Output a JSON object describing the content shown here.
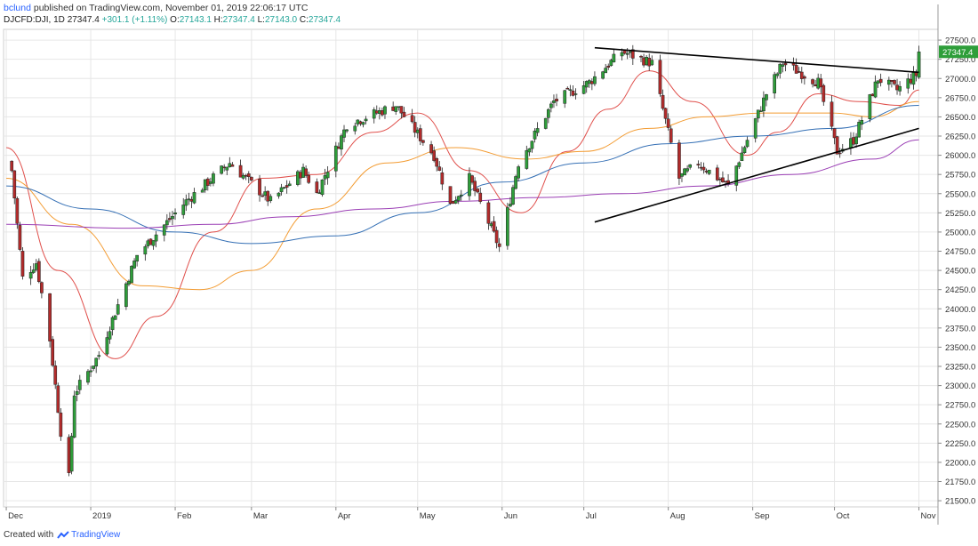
{
  "header": {
    "author": "bclund",
    "published_text": "published on TradingView.com, November 01, 2019 22:06:17 UTC"
  },
  "symbol_row": {
    "symbol": "DJCFD:DJI, 1D",
    "last": "27347.4",
    "change": "+301.1 (+1.11%)",
    "open_label": "O:",
    "open": "27143.1",
    "high_label": "H:",
    "high": "27347.4",
    "low_label": "L:",
    "low": "27143.0",
    "close_label": "C:",
    "close": "27347.4"
  },
  "footer": {
    "created_with": "Created with",
    "brand": "TradingView"
  },
  "colors": {
    "up": "#2e9e3a",
    "down": "#b22b2b",
    "price_tag": "#2e9e3a",
    "ma_red": "#e0504c",
    "ma_orange": "#f39c33",
    "ma_blue": "#3570b5",
    "ma_purple": "#9b3fb5",
    "trendline": "#000000",
    "grid": "#e6e6e6"
  },
  "chart_data": {
    "type": "candlestick",
    "title": "",
    "y_axis": {
      "ticks": [
        27500,
        27250,
        27000,
        26750,
        26500,
        26250,
        26000,
        25750,
        25500,
        25250,
        25000,
        24750,
        24500,
        24250,
        24000,
        23750,
        23500,
        23250,
        23000,
        22750,
        22500,
        22250,
        22000,
        21750,
        21500
      ],
      "tick_labels": [
        "27500.0",
        "27250.0",
        "27000.0",
        "26750.0",
        "26500.0",
        "26250.0",
        "26000.0",
        "25750.0",
        "25500.0",
        "25250.0",
        "25000.0",
        "24750.0",
        "24500.0",
        "24250.0",
        "24000.0",
        "23750.0",
        "23500.0",
        "23250.0",
        "23000.0",
        "22750.0",
        "22500.0",
        "22250.0",
        "22000.0",
        "21750.0",
        "21500.0"
      ],
      "range": [
        21420,
        27640
      ],
      "position": "right"
    },
    "x_axis": {
      "labels": [
        {
          "text": "Dec",
          "date": "2018-12-01"
        },
        {
          "text": "2019",
          "date": "2019-01-01"
        },
        {
          "text": "Feb",
          "date": "2019-02-01"
        },
        {
          "text": "Mar",
          "date": "2019-03-01"
        },
        {
          "text": "Apr",
          "date": "2019-04-01"
        },
        {
          "text": "May",
          "date": "2019-05-01"
        },
        {
          "text": "Jun",
          "date": "2019-06-01"
        },
        {
          "text": "Jul",
          "date": "2019-07-01"
        },
        {
          "text": "Aug",
          "date": "2019-08-01"
        },
        {
          "text": "Sep",
          "date": "2019-09-01"
        },
        {
          "text": "Oct",
          "date": "2019-10-01"
        },
        {
          "text": "Nov",
          "date": "2019-11-01"
        }
      ],
      "range": [
        "2018-11-30",
        "2019-11-08"
      ]
    },
    "last_price_label": "27347.4",
    "last_price": 27347.4,
    "close_anchors": [
      {
        "date": "2018-12-03",
        "close": 25800
      },
      {
        "date": "2018-12-07",
        "close": 24400
      },
      {
        "date": "2018-12-12",
        "close": 24600
      },
      {
        "date": "2018-12-17",
        "close": 23600
      },
      {
        "date": "2018-12-21",
        "close": 22400
      },
      {
        "date": "2018-12-24",
        "close": 21800
      },
      {
        "date": "2018-12-26",
        "close": 22900
      },
      {
        "date": "2019-01-04",
        "close": 23400
      },
      {
        "date": "2019-01-18",
        "close": 24700
      },
      {
        "date": "2019-02-05",
        "close": 25400
      },
      {
        "date": "2019-02-21",
        "close": 25900
      },
      {
        "date": "2019-03-08",
        "close": 25400
      },
      {
        "date": "2019-03-20",
        "close": 25800
      },
      {
        "date": "2019-03-25",
        "close": 25500
      },
      {
        "date": "2019-04-05",
        "close": 26400
      },
      {
        "date": "2019-04-23",
        "close": 26650
      },
      {
        "date": "2019-05-07",
        "close": 26000
      },
      {
        "date": "2019-05-13",
        "close": 25350
      },
      {
        "date": "2019-05-20",
        "close": 25700
      },
      {
        "date": "2019-05-31",
        "close": 24800
      },
      {
        "date": "2019-06-07",
        "close": 25900
      },
      {
        "date": "2019-06-20",
        "close": 26700
      },
      {
        "date": "2019-07-03",
        "close": 26950
      },
      {
        "date": "2019-07-15",
        "close": 27350
      },
      {
        "date": "2019-07-26",
        "close": 27200
      },
      {
        "date": "2019-08-05",
        "close": 25700
      },
      {
        "date": "2019-08-12",
        "close": 25900
      },
      {
        "date": "2019-08-23",
        "close": 25600
      },
      {
        "date": "2019-09-06",
        "close": 26800
      },
      {
        "date": "2019-09-12",
        "close": 27200
      },
      {
        "date": "2019-09-25",
        "close": 26950
      },
      {
        "date": "2019-10-02",
        "close": 26050
      },
      {
        "date": "2019-10-08",
        "close": 26200
      },
      {
        "date": "2019-10-17",
        "close": 27000
      },
      {
        "date": "2019-10-24",
        "close": 26850
      },
      {
        "date": "2019-10-31",
        "close": 27050
      },
      {
        "date": "2019-11-01",
        "close": 27347.4
      }
    ],
    "moving_averages": [
      {
        "color_key": "ma_red",
        "points": [
          {
            "date": "2018-12-01",
            "value": 26100
          },
          {
            "date": "2018-12-20",
            "value": 24500
          },
          {
            "date": "2019-01-10",
            "value": 23350
          },
          {
            "date": "2019-01-25",
            "value": 23900
          },
          {
            "date": "2019-02-15",
            "value": 25000
          },
          {
            "date": "2019-03-05",
            "value": 25700
          },
          {
            "date": "2019-03-25",
            "value": 25750
          },
          {
            "date": "2019-04-15",
            "value": 26300
          },
          {
            "date": "2019-05-01",
            "value": 26550
          },
          {
            "date": "2019-05-20",
            "value": 25800
          },
          {
            "date": "2019-06-08",
            "value": 25250
          },
          {
            "date": "2019-06-25",
            "value": 26050
          },
          {
            "date": "2019-07-10",
            "value": 26600
          },
          {
            "date": "2019-07-25",
            "value": 27100
          },
          {
            "date": "2019-08-10",
            "value": 26700
          },
          {
            "date": "2019-08-30",
            "value": 26000
          },
          {
            "date": "2019-09-10",
            "value": 26300
          },
          {
            "date": "2019-09-25",
            "value": 26800
          },
          {
            "date": "2019-10-10",
            "value": 26700
          },
          {
            "date": "2019-10-25",
            "value": 26650
          },
          {
            "date": "2019-11-01",
            "value": 26850
          }
        ]
      },
      {
        "color_key": "ma_orange",
        "points": [
          {
            "date": "2018-12-01",
            "value": 25700
          },
          {
            "date": "2018-12-25",
            "value": 25100
          },
          {
            "date": "2019-01-20",
            "value": 24300
          },
          {
            "date": "2019-02-10",
            "value": 24250
          },
          {
            "date": "2019-03-01",
            "value": 24500
          },
          {
            "date": "2019-03-25",
            "value": 25300
          },
          {
            "date": "2019-04-20",
            "value": 25900
          },
          {
            "date": "2019-05-15",
            "value": 26100
          },
          {
            "date": "2019-06-10",
            "value": 25950
          },
          {
            "date": "2019-07-01",
            "value": 26050
          },
          {
            "date": "2019-07-25",
            "value": 26350
          },
          {
            "date": "2019-08-15",
            "value": 26500
          },
          {
            "date": "2019-09-05",
            "value": 26550
          },
          {
            "date": "2019-09-30",
            "value": 26550
          },
          {
            "date": "2019-10-15",
            "value": 26500
          },
          {
            "date": "2019-11-01",
            "value": 26700
          }
        ]
      },
      {
        "color_key": "ma_blue",
        "points": [
          {
            "date": "2018-12-01",
            "value": 25600
          },
          {
            "date": "2019-01-01",
            "value": 25300
          },
          {
            "date": "2019-02-01",
            "value": 25000
          },
          {
            "date": "2019-03-01",
            "value": 24850
          },
          {
            "date": "2019-04-01",
            "value": 24950
          },
          {
            "date": "2019-05-01",
            "value": 25250
          },
          {
            "date": "2019-06-01",
            "value": 25650
          },
          {
            "date": "2019-07-01",
            "value": 25900
          },
          {
            "date": "2019-08-01",
            "value": 26150
          },
          {
            "date": "2019-09-01",
            "value": 26250
          },
          {
            "date": "2019-10-01",
            "value": 26350
          },
          {
            "date": "2019-11-01",
            "value": 26650
          }
        ]
      },
      {
        "color_key": "ma_purple",
        "points": [
          {
            "date": "2018-12-01",
            "value": 25100
          },
          {
            "date": "2019-01-15",
            "value": 25050
          },
          {
            "date": "2019-02-15",
            "value": 25100
          },
          {
            "date": "2019-03-15",
            "value": 25200
          },
          {
            "date": "2019-04-15",
            "value": 25300
          },
          {
            "date": "2019-05-15",
            "value": 25400
          },
          {
            "date": "2019-06-15",
            "value": 25450
          },
          {
            "date": "2019-07-15",
            "value": 25500
          },
          {
            "date": "2019-08-15",
            "value": 25600
          },
          {
            "date": "2019-09-15",
            "value": 25750
          },
          {
            "date": "2019-10-15",
            "value": 25950
          },
          {
            "date": "2019-11-01",
            "value": 26200
          }
        ]
      }
    ],
    "trendlines": [
      {
        "start": {
          "date": "2019-07-05",
          "value": 27400
        },
        "end": {
          "date": "2019-11-01",
          "value": 27080
        }
      },
      {
        "start": {
          "date": "2019-07-05",
          "value": 25130
        },
        "end": {
          "date": "2019-11-01",
          "value": 26350
        }
      }
    ],
    "grid": true,
    "legend": "none"
  }
}
